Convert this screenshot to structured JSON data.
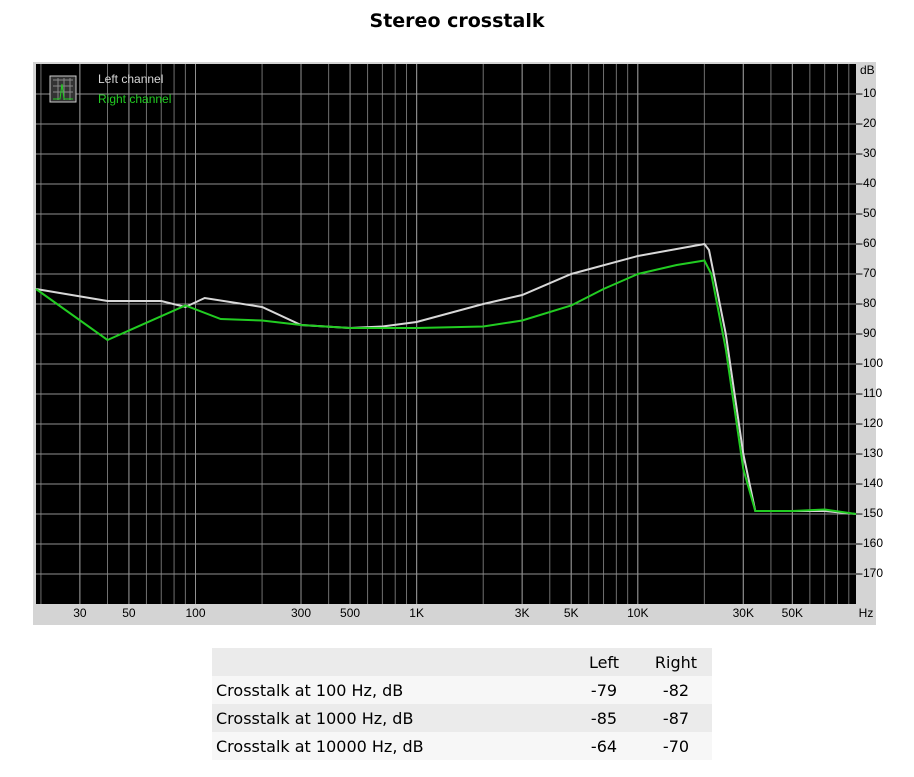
{
  "chart_data": {
    "type": "line",
    "title": "Stereo crosstalk",
    "x_scale": "log",
    "xlim": [
      19,
      97000
    ],
    "ylim": [
      -180,
      0
    ],
    "x_unit": "Hz",
    "y_unit": "dB",
    "xticks": [
      30,
      50,
      100,
      300,
      500,
      {
        "value": 1000,
        "label": "1K"
      },
      {
        "value": 3000,
        "label": "3K"
      },
      {
        "value": 5000,
        "label": "5K"
      },
      {
        "value": 10000,
        "label": "10K"
      },
      {
        "value": 30000,
        "label": "30K"
      },
      {
        "value": 50000,
        "label": "50K"
      }
    ],
    "yticks": [
      -10,
      -20,
      -30,
      -40,
      -50,
      -60,
      -70,
      -80,
      -90,
      -100,
      -110,
      -120,
      -130,
      -140,
      -150,
      -160,
      -170
    ],
    "grid": true,
    "legend": "top-left",
    "series": [
      {
        "name": "Left channel",
        "color": "#d8d8d8",
        "x": [
          19,
          40,
          70,
          90,
          110,
          200,
          300,
          500,
          700,
          1000,
          2000,
          3000,
          5000,
          10000,
          20000,
          21000,
          25000,
          30000,
          34000,
          50000,
          70000,
          97000
        ],
        "values": [
          -75,
          -79,
          -79,
          -81,
          -78,
          -81,
          -87,
          -88,
          -87.5,
          -86,
          -80,
          -77,
          -70,
          -64,
          -60,
          -62,
          -90,
          -130,
          -149,
          -149,
          -149,
          -150
        ]
      },
      {
        "name": "Right channel",
        "color": "#22cc22",
        "x": [
          19,
          40,
          90,
          130,
          200,
          300,
          500,
          1000,
          2000,
          3000,
          5000,
          7000,
          10000,
          15000,
          20000,
          21500,
          25000,
          30000,
          34000,
          50000,
          70000,
          97000
        ],
        "values": [
          -75,
          -92,
          -80.5,
          -85,
          -85.5,
          -87,
          -88,
          -88,
          -87.5,
          -85.5,
          -80.5,
          -75,
          -70,
          -67,
          -65.5,
          -70,
          -95,
          -135,
          -149,
          -149,
          -148.5,
          -150
        ]
      }
    ]
  },
  "table": {
    "header": [
      "Left",
      "Right"
    ],
    "rows": [
      [
        "Crosstalk at 100 Hz, dB",
        -79,
        -82
      ],
      [
        "Crosstalk at 1000 Hz, dB",
        -85,
        -87
      ],
      [
        "Crosstalk at 10000 Hz, dB",
        -64,
        -70
      ]
    ]
  }
}
